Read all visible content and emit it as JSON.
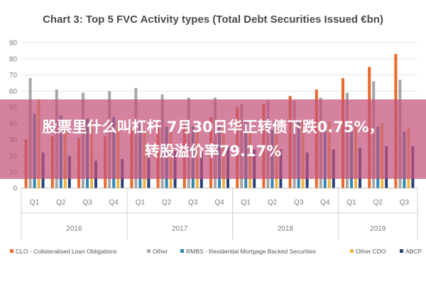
{
  "overlay": {
    "line1": "股票里什么叫杠杆 7月30日华正转债下跌0.75%，",
    "line2": "转股溢价率79.17%"
  },
  "chart_data": {
    "type": "bar",
    "title": "Chart 3: Top 5 FVC Activity types (Total Debt Securities Issued €bn)",
    "ylim": [
      0,
      90
    ],
    "yticks": [
      0,
      10,
      20,
      30,
      40,
      50,
      60,
      70,
      80,
      90
    ],
    "categories": [
      "Q1",
      "Q2",
      "Q3",
      "Q4",
      "Q1",
      "Q2",
      "Q3",
      "Q4",
      "Q1",
      "Q2",
      "Q3",
      "Q4",
      "Q1",
      "Q2",
      "Q3"
    ],
    "groups": [
      {
        "label": "2016",
        "count": 4
      },
      {
        "label": "2017",
        "count": 4
      },
      {
        "label": "2018",
        "count": 4
      },
      {
        "label": "2019",
        "count": 3
      }
    ],
    "grid": true,
    "legend_position": "bottom",
    "series": [
      {
        "name": "CLO - Collateralised Loan Obligations",
        "color": "#e8692a",
        "values": [
          30,
          32,
          31,
          32,
          37,
          40,
          40,
          44,
          50,
          52,
          57,
          61,
          68,
          75,
          83
        ]
      },
      {
        "name": "Other",
        "color": "#a6a6a6",
        "values": [
          68,
          61,
          59,
          60,
          62,
          58,
          56,
          56,
          52,
          54,
          54,
          56,
          59,
          66,
          67
        ]
      },
      {
        "name": "RMBS - Residential Mortgage Backed Securities",
        "color": "#2e86b5",
        "values": [
          46,
          45,
          43,
          44,
          40,
          38,
          38,
          38,
          42,
          36,
          41,
          38,
          39,
          38,
          35
        ]
      },
      {
        "name": "Other CDO",
        "color": "#f2b43e",
        "values": [
          55,
          40,
          40,
          40,
          36,
          35,
          36,
          38,
          36,
          36,
          42,
          41,
          41,
          40,
          37
        ]
      },
      {
        "name": "ABCP",
        "color": "#27407a",
        "values": [
          22,
          20,
          17,
          18,
          22,
          23,
          22,
          26,
          24,
          24,
          22,
          24,
          25,
          26,
          26
        ]
      }
    ]
  }
}
